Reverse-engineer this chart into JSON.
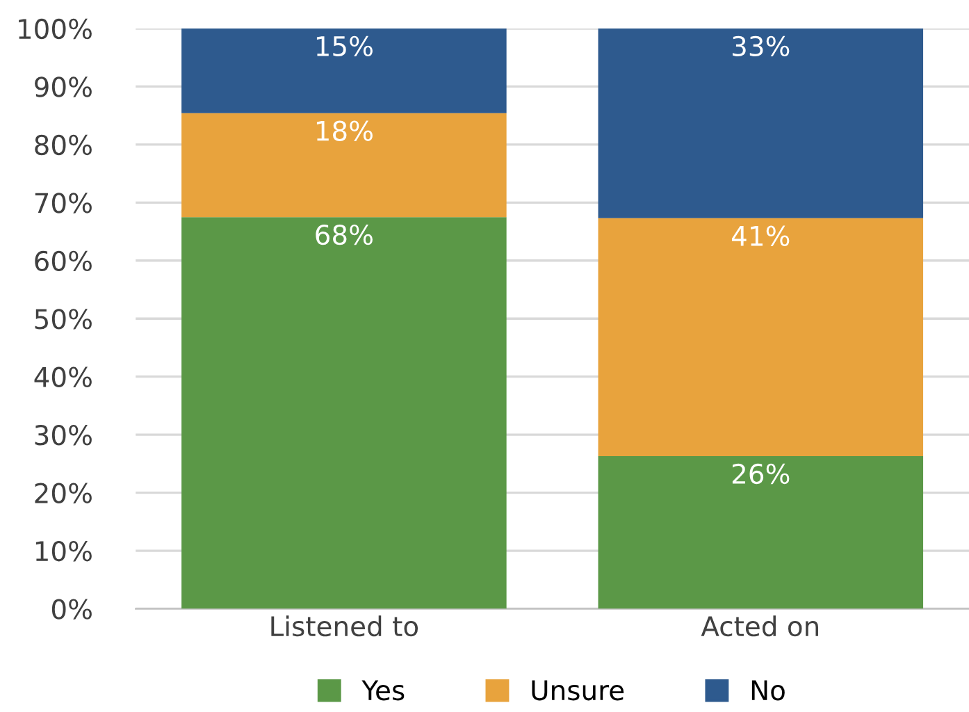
{
  "chart_data": {
    "type": "bar",
    "stacked": true,
    "categories": [
      "Listened to",
      "Acted on"
    ],
    "series": [
      {
        "name": "Yes",
        "color": "#5b9847",
        "values": [
          67.5,
          26.3
        ],
        "value_labels": [
          "68%",
          "26%"
        ]
      },
      {
        "name": "Unsure",
        "color": "#e8a33d",
        "values": [
          17.9,
          41.0
        ],
        "value_labels": [
          "18%",
          "41%"
        ]
      },
      {
        "name": "No",
        "color": "#2e5a8e",
        "values": [
          14.6,
          32.7
        ],
        "value_labels": [
          "15%",
          "33%"
        ]
      }
    ],
    "ylim": [
      0,
      100
    ],
    "yticks": [
      {
        "value": 0,
        "label": "0%"
      },
      {
        "value": 10,
        "label": "10%"
      },
      {
        "value": 20,
        "label": "20%"
      },
      {
        "value": 30,
        "label": "30%"
      },
      {
        "value": 40,
        "label": "40%"
      },
      {
        "value": 50,
        "label": "50%"
      },
      {
        "value": 60,
        "label": "60%"
      },
      {
        "value": 70,
        "label": "70%"
      },
      {
        "value": 80,
        "label": "80%"
      },
      {
        "value": 90,
        "label": "90%"
      },
      {
        "value": 100,
        "label": "100%"
      }
    ],
    "grid": "y",
    "legend": "bottom"
  }
}
